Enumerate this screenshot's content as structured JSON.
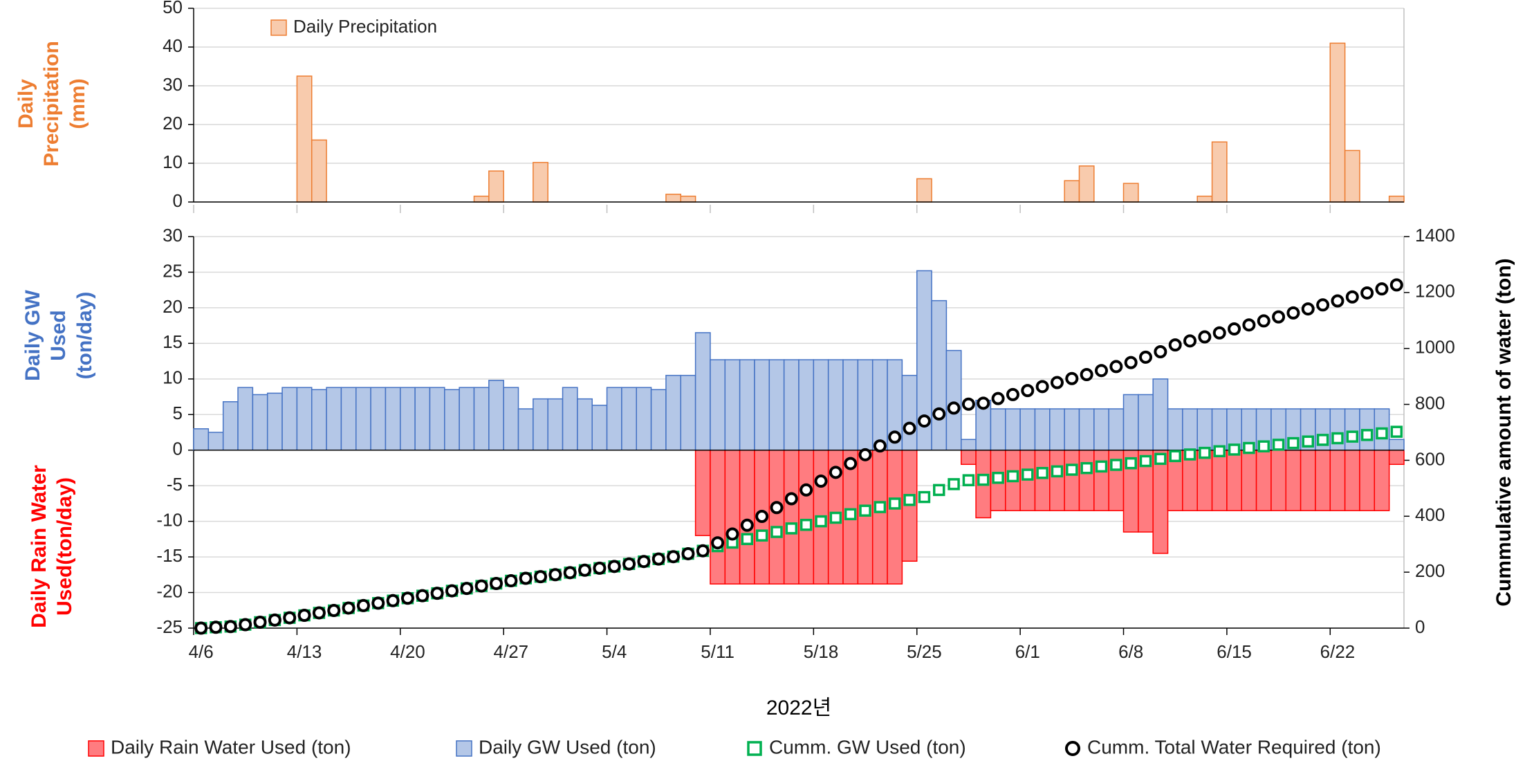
{
  "chart_data": [
    {
      "type": "bar",
      "ylabel": "Daily Precipitation (mm)",
      "ylabel_color": "#ed7d31",
      "ylim": [
        0,
        50
      ],
      "yticks": [
        0,
        10,
        20,
        30,
        40,
        50
      ],
      "grid": true,
      "legend": "upper left",
      "series": [
        {
          "name": "Daily Precipitation",
          "color": "#f8cbad",
          "edgecolor": "#ed7d31",
          "values": [
            0,
            0,
            0,
            0,
            0,
            0,
            0,
            32.5,
            16,
            0,
            0,
            0,
            0,
            0,
            0,
            0,
            0,
            0,
            0,
            1.5,
            8,
            0,
            0,
            10.2,
            0,
            0,
            0,
            0,
            0,
            0,
            0,
            0,
            2,
            1.5,
            0,
            0,
            0,
            0,
            0,
            0,
            0,
            0,
            0,
            0,
            0,
            0,
            0,
            0,
            0,
            6,
            0,
            0,
            0,
            0,
            0,
            0,
            0,
            0,
            0,
            5.5,
            9.3,
            0,
            0,
            4.8,
            0,
            0,
            0,
            0,
            1.5,
            15.5,
            0,
            0,
            0,
            0,
            0,
            0,
            0,
            41,
            13.3,
            0,
            0,
            1.5
          ]
        }
      ]
    },
    {
      "type": "combo",
      "xlabel": "2022년",
      "ylabels": [
        {
          "text": "Daily GW Used (ton/day)",
          "color": "#4472c4"
        },
        {
          "text": "Daily Rain Water Used(ton/day)",
          "color": "#ff0000"
        }
      ],
      "y2label": "Cummulative amount of water (ton)",
      "categories": [
        "4/6",
        null,
        null,
        null,
        null,
        null,
        null,
        "4/13",
        null,
        null,
        null,
        null,
        null,
        null,
        "4/20",
        null,
        null,
        null,
        null,
        null,
        null,
        "4/27",
        null,
        null,
        null,
        null,
        null,
        null,
        "5/4",
        null,
        null,
        null,
        null,
        null,
        null,
        "5/11",
        null,
        null,
        null,
        null,
        null,
        null,
        "5/18",
        null,
        null,
        null,
        null,
        null,
        null,
        "5/25",
        null,
        null,
        null,
        null,
        null,
        null,
        "6/1",
        null,
        null,
        null,
        null,
        null,
        null,
        "6/8",
        null,
        null,
        null,
        null,
        null,
        null,
        "6/15",
        null,
        null,
        null,
        null,
        null,
        null,
        "6/22",
        null,
        null,
        null,
        null
      ],
      "ylim": [
        -25,
        30
      ],
      "yticks": [
        -25,
        -20,
        -15,
        -10,
        -5,
        0,
        5,
        10,
        15,
        20,
        25,
        30
      ],
      "y2lim": [
        0,
        1400
      ],
      "y2ticks": [
        0,
        200,
        400,
        600,
        800,
        1000,
        1200,
        1400
      ],
      "grid": true,
      "legend": "bottom",
      "series": [
        {
          "name": "Daily Rain Water Used (ton)",
          "type": "bar",
          "color": "#ff7c80",
          "edgecolor": "#ff0000",
          "values": [
            0,
            0,
            0,
            0,
            0,
            0,
            0,
            0,
            0,
            0,
            0,
            0,
            0,
            0,
            0,
            0,
            0,
            0,
            0,
            0,
            0,
            0,
            0,
            0,
            0,
            0,
            0,
            0,
            0,
            0,
            0,
            0,
            0,
            0,
            -12,
            -18.8,
            -18.8,
            -18.8,
            -18.8,
            -18.8,
            -18.8,
            -18.8,
            -18.8,
            -18.8,
            -18.8,
            -18.8,
            -18.8,
            -18.8,
            -15.6,
            0,
            0,
            0,
            -2,
            -9.5,
            -8.5,
            -8.5,
            -8.5,
            -8.5,
            -8.5,
            -8.5,
            -8.5,
            -8.5,
            -8.5,
            -11.5,
            -11.5,
            -14.5,
            -8.5,
            -8.5,
            -8.5,
            -8.5,
            -8.5,
            -8.5,
            -8.5,
            -8.5,
            -8.5,
            -8.5,
            -8.5,
            -8.5,
            -8.5,
            -8.5,
            -8.5,
            -2
          ]
        },
        {
          "name": "Daily GW Used (ton)",
          "type": "bar",
          "color": "#b4c7e7",
          "edgecolor": "#4472c4",
          "values": [
            3,
            2.5,
            6.8,
            8.8,
            7.8,
            8,
            8.8,
            8.8,
            8.5,
            8.8,
            8.8,
            8.8,
            8.8,
            8.8,
            8.8,
            8.8,
            8.8,
            8.5,
            8.8,
            8.8,
            9.8,
            8.8,
            5.8,
            7.2,
            7.2,
            8.8,
            7.2,
            6.3,
            8.8,
            8.8,
            8.8,
            8.5,
            10.5,
            10.5,
            16.5,
            12.7,
            12.7,
            12.7,
            12.7,
            12.7,
            12.7,
            12.7,
            12.7,
            12.7,
            12.7,
            12.7,
            12.7,
            12.7,
            10.5,
            25.2,
            21,
            14,
            1.5,
            7,
            5.8,
            5.8,
            5.8,
            5.8,
            5.8,
            5.8,
            5.8,
            5.8,
            5.8,
            7.8,
            7.8,
            10,
            5.8,
            5.8,
            5.8,
            5.8,
            5.8,
            5.8,
            5.8,
            5.8,
            5.8,
            5.8,
            5.8,
            5.8,
            5.8,
            5.8,
            5.8,
            1.5
          ]
        },
        {
          "name": "Cumm. GW Used (ton)",
          "type": "scatter",
          "marker": "square",
          "axis": "y2",
          "color": "#00b050",
          "values": [
            0,
            3,
            5.5,
            12.3,
            21.1,
            28.9,
            36.9,
            45.7,
            54.5,
            63,
            71.8,
            80.6,
            89.4,
            98.2,
            107,
            115.8,
            124.6,
            133.4,
            141.9,
            150.7,
            159.5,
            169.3,
            178.1,
            183.9,
            191.1,
            198.3,
            207.1,
            214.3,
            220.6,
            229.4,
            238.2,
            247,
            255.5,
            266,
            276.5,
            293,
            305.7,
            318.4,
            331.1,
            343.8,
            356.5,
            369.2,
            381.9,
            394.6,
            407.3,
            420,
            432.7,
            445.4,
            458.1,
            468.6,
            493.8,
            514.8,
            528.8,
            530.3,
            537.3,
            543.1,
            548.9,
            554.7,
            560.5,
            566.3,
            572.1,
            577.9,
            583.7,
            589.5,
            597.3,
            605.1,
            615.1,
            620.9,
            626.7,
            632.5,
            638.3,
            644.1,
            649.9,
            655.7,
            661.5,
            667.3,
            673.1,
            678.9,
            684.7,
            690.5,
            696.3,
            702.1
          ]
        },
        {
          "name": "Cumm. Total Water Required (ton)",
          "type": "scatter",
          "marker": "circle",
          "axis": "y2",
          "color": "#000000",
          "values": [
            0,
            3,
            5.5,
            12.3,
            21.1,
            28.9,
            36.9,
            45.7,
            54.5,
            63,
            71.8,
            80.6,
            89.4,
            98.2,
            107,
            115.8,
            124.6,
            133.4,
            141.9,
            150.7,
            159.5,
            169.3,
            178.1,
            183.9,
            191.1,
            198.3,
            207.1,
            214.3,
            220.6,
            229.4,
            238.2,
            247,
            255.5,
            266,
            276.5,
            305,
            336.5,
            368,
            399.5,
            431,
            462.5,
            494,
            525.5,
            557,
            588.5,
            620,
            651.5,
            683,
            714.5,
            740.6,
            765.8,
            786.8,
            800.8,
            804.3,
            820.8,
            835.1,
            849.4,
            863.7,
            878,
            892.3,
            906.6,
            920.9,
            935.2,
            949.5,
            968.8,
            988.1,
            1012.6,
            1026.9,
            1041.2,
            1055.5,
            1069.8,
            1084.1,
            1098.4,
            1112.7,
            1127,
            1141.3,
            1155.6,
            1169.9,
            1184.2,
            1198.5,
            1212.8,
            1227.1
          ]
        }
      ]
    }
  ]
}
